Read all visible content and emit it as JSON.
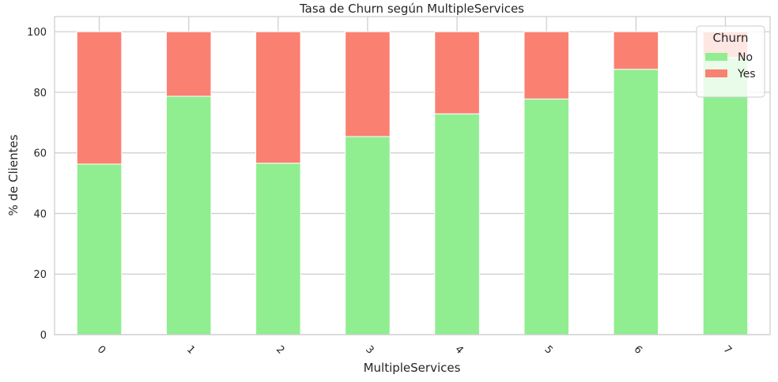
{
  "chart_data": {
    "type": "bar",
    "stacked": true,
    "title": "Tasa de Churn según MultipleServices",
    "xlabel": "MultipleServices",
    "ylabel": "% de Clientes",
    "categories": [
      "0",
      "1",
      "2",
      "3",
      "4",
      "5",
      "6",
      "7"
    ],
    "ylim": [
      0,
      105
    ],
    "yticks": [
      0,
      20,
      40,
      60,
      80,
      100
    ],
    "grid": true,
    "legend": {
      "title": "Churn",
      "placement": "top-right"
    },
    "series": [
      {
        "name": "No",
        "color": "#90ee90",
        "values": [
          56.3,
          78.7,
          56.6,
          65.4,
          72.9,
          77.8,
          87.6,
          91.5
        ]
      },
      {
        "name": "Yes",
        "color": "#fa8072",
        "values": [
          43.7,
          21.3,
          43.4,
          34.6,
          27.1,
          22.2,
          12.4,
          8.5
        ]
      }
    ]
  }
}
